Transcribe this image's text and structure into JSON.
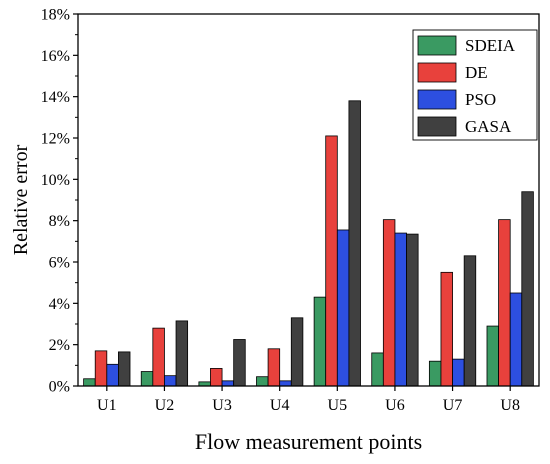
{
  "chart_data": {
    "type": "bar",
    "xlabel": "Flow measurement points",
    "ylabel": "Relative error",
    "categories": [
      "U1",
      "U2",
      "U3",
      "U4",
      "U5",
      "U6",
      "U7",
      "U8"
    ],
    "ylim": [
      0,
      18
    ],
    "yticks": [
      0,
      2,
      4,
      6,
      8,
      10,
      12,
      14,
      16,
      18
    ],
    "ytick_labels": [
      "0%",
      "2%",
      "4%",
      "6%",
      "8%",
      "10%",
      "12%",
      "14%",
      "16%",
      "18%"
    ],
    "legend_position": "top-right",
    "grid": false,
    "series": [
      {
        "name": "SDEIA",
        "color": "#3a9a62",
        "values": [
          0.35,
          0.7,
          0.2,
          0.45,
          4.3,
          1.6,
          1.2,
          2.9
        ]
      },
      {
        "name": "DE",
        "color": "#e8413c",
        "values": [
          1.7,
          2.8,
          0.85,
          1.8,
          12.1,
          8.05,
          5.5,
          8.05
        ]
      },
      {
        "name": "PSO",
        "color": "#2d4fe0",
        "values": [
          1.05,
          0.5,
          0.25,
          0.25,
          7.55,
          7.4,
          1.3,
          4.5
        ]
      },
      {
        "name": "GASA",
        "color": "#404040",
        "values": [
          1.65,
          3.15,
          2.25,
          3.3,
          13.8,
          7.35,
          6.3,
          9.4
        ]
      }
    ]
  }
}
